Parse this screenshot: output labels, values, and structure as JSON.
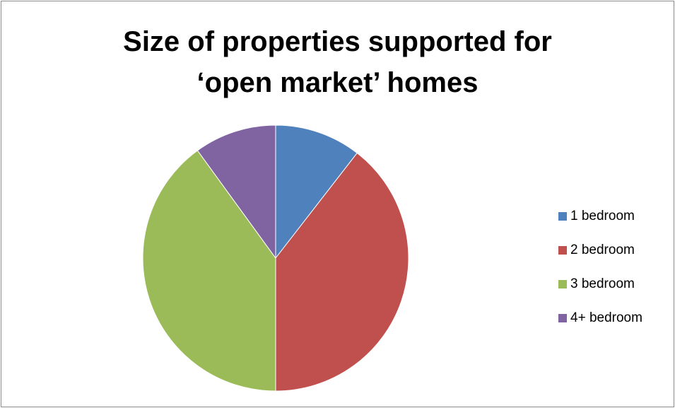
{
  "chart_data": {
    "type": "pie",
    "title": [
      "Size of properties supported for",
      "‘open market’ homes"
    ],
    "categories": [
      "1 bedroom",
      "2 bedroom",
      "3 bedroom",
      "4+ bedroom"
    ],
    "values": [
      10.5,
      39.5,
      40,
      10
    ],
    "unit": "percent (estimated)",
    "colors": [
      "#4F81BD",
      "#C0504D",
      "#9BBB59",
      "#8064A2"
    ],
    "start_angle": "12 o'clock",
    "direction": "clockwise",
    "legend_position": "right"
  }
}
